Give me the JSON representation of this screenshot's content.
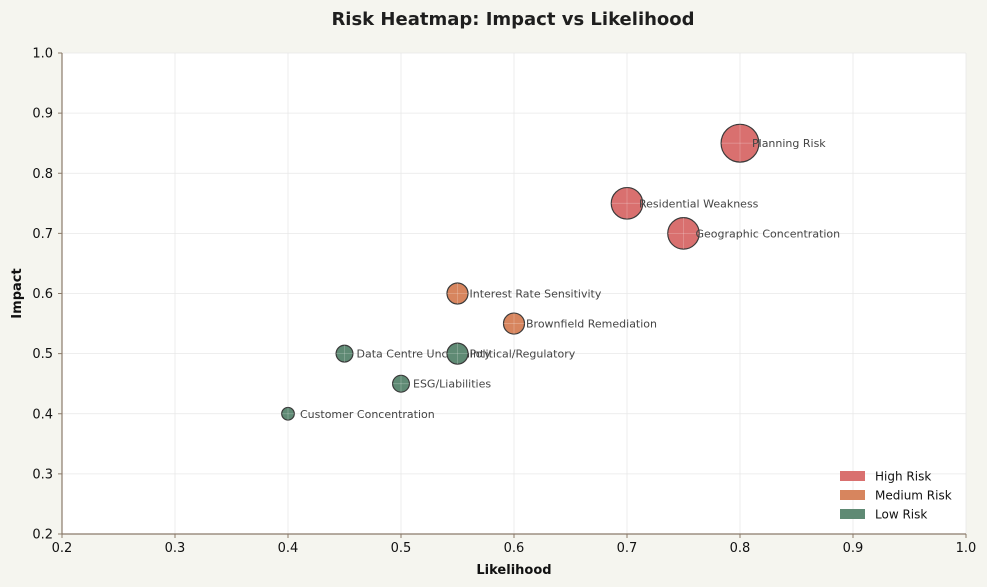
{
  "chart_data": {
    "type": "scatter",
    "title": "Risk Heatmap: Impact vs Likelihood",
    "xlabel": "Likelihood",
    "ylabel": "Impact",
    "xlim": [
      0.2,
      1.0
    ],
    "ylim": [
      0.2,
      1.0
    ],
    "xticks": [
      "0.2",
      "0.3",
      "0.4",
      "0.5",
      "0.6",
      "0.7",
      "0.8",
      "0.9",
      "1.0"
    ],
    "yticks": [
      "0.2",
      "0.3",
      "0.4",
      "0.5",
      "0.6",
      "0.7",
      "0.8",
      "0.9",
      "1.0"
    ],
    "grid": true,
    "legend_position": "bottom-right",
    "series": [
      {
        "name": "High Risk",
        "color": "#d9706f",
        "points": [
          {
            "label": "Planning Risk",
            "x": 0.8,
            "y": 0.85,
            "size": 9
          },
          {
            "label": "Residential Weakness",
            "x": 0.7,
            "y": 0.75,
            "size": 7.5
          },
          {
            "label": "Geographic Concentration",
            "x": 0.75,
            "y": 0.7,
            "size": 7.5
          }
        ]
      },
      {
        "name": "Medium Risk",
        "color": "#d7855e",
        "points": [
          {
            "label": "Interest Rate Sensitivity",
            "x": 0.55,
            "y": 0.6,
            "size": 5
          },
          {
            "label": "Brownfield Remediation",
            "x": 0.6,
            "y": 0.55,
            "size": 5
          }
        ]
      },
      {
        "name": "Low Risk",
        "color": "#5f8a74",
        "points": [
          {
            "label": "Data Centre Uncertainty",
            "x": 0.45,
            "y": 0.5,
            "size": 4
          },
          {
            "label": "Political/Regulatory",
            "x": 0.55,
            "y": 0.5,
            "size": 5
          },
          {
            "label": "ESG/Liabilities",
            "x": 0.5,
            "y": 0.45,
            "size": 4
          },
          {
            "label": "Customer Concentration",
            "x": 0.4,
            "y": 0.4,
            "size": 3
          }
        ]
      }
    ]
  }
}
